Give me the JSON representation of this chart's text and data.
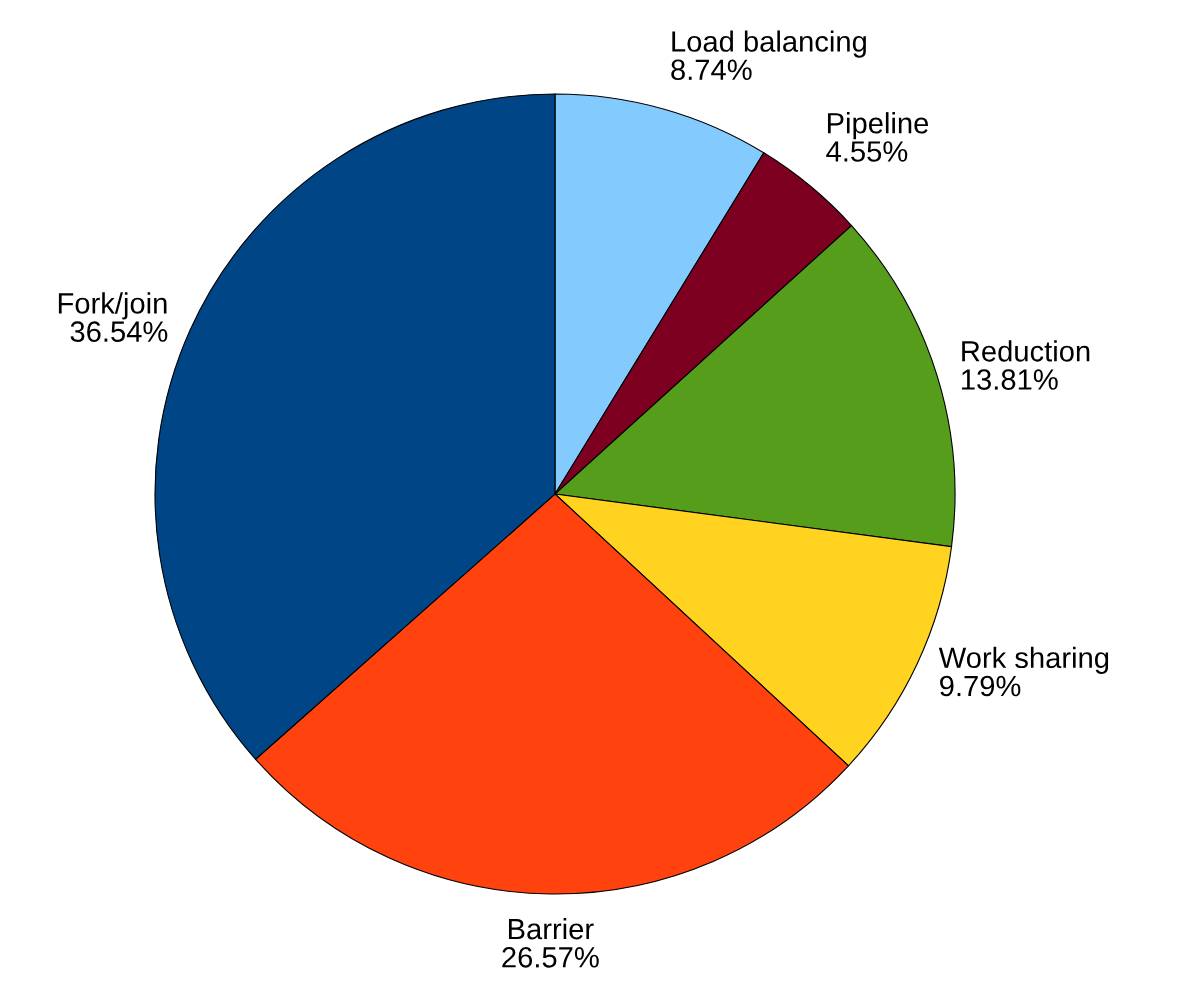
{
  "chart_data": {
    "type": "pie",
    "categories": [
      "Load balancing",
      "Pipeline",
      "Reduction",
      "Work sharing",
      "Barrier",
      "Fork/join"
    ],
    "values": [
      8.74,
      4.55,
      13.81,
      9.79,
      26.57,
      36.54
    ],
    "colors": [
      "#83caff",
      "#7e0021",
      "#579d1c",
      "#ffd320",
      "#ff420e",
      "#004586"
    ],
    "value_labels": [
      "8.74%",
      "4.55%",
      "13.81%",
      "9.79%",
      "26.57%",
      "36.54%"
    ],
    "legend": false
  }
}
